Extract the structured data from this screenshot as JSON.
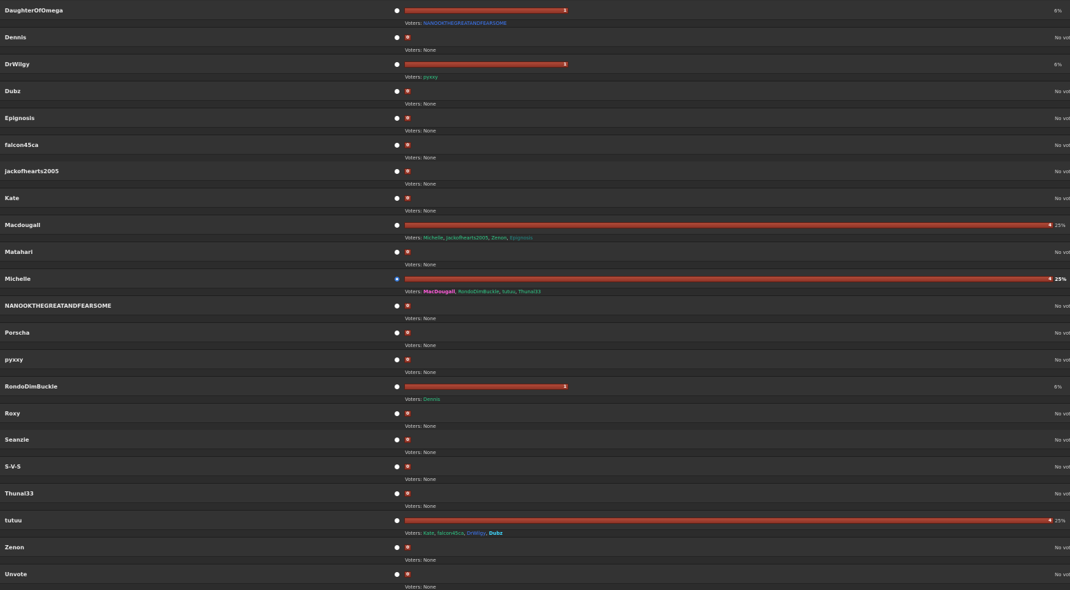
{
  "poll": {
    "voters_label": "Voters:",
    "none_label": "None",
    "no_votes_label": "No votes",
    "options": [
      {
        "name": "DaughterOfOmega",
        "votes": 1,
        "percent": "6%",
        "checked": false,
        "voters": [
          {
            "name": "NANOOKTHEGREATANDFEARSOME",
            "color": "#3d7bff",
            "bold": false
          }
        ]
      },
      {
        "name": "Dennis",
        "votes": 0,
        "percent": "",
        "checked": false,
        "voters": []
      },
      {
        "name": "DrWilgy",
        "votes": 1,
        "percent": "6%",
        "checked": false,
        "voters": [
          {
            "name": "pyxxy",
            "color": "#2fcf8a",
            "bold": false
          }
        ]
      },
      {
        "name": "Dubz",
        "votes": 0,
        "percent": "",
        "checked": false,
        "voters": []
      },
      {
        "name": "Epignosis",
        "votes": 0,
        "percent": "",
        "checked": false,
        "voters": []
      },
      {
        "name": "falcon45ca",
        "votes": 0,
        "percent": "",
        "checked": false,
        "voters": []
      },
      {
        "name": "jackofhearts2005",
        "votes": 0,
        "percent": "",
        "checked": false,
        "voters": []
      },
      {
        "name": "Kate",
        "votes": 0,
        "percent": "",
        "checked": false,
        "voters": []
      },
      {
        "name": "Macdougall",
        "votes": 4,
        "percent": "25%",
        "checked": false,
        "voters": [
          {
            "name": "Michelle",
            "color": "#2fcf8a",
            "bold": false
          },
          {
            "name": "Jackofhearts2005",
            "color": "#2fcf8a",
            "bold": false
          },
          {
            "name": "Zenon",
            "color": "#2fcf8a",
            "bold": false
          },
          {
            "name": "Epignosis",
            "color": "#1f8f8a",
            "bold": false
          }
        ]
      },
      {
        "name": "Matahari",
        "votes": 0,
        "percent": "",
        "checked": false,
        "voters": []
      },
      {
        "name": "Michelle",
        "votes": 4,
        "percent": "25%",
        "checked": true,
        "voters": [
          {
            "name": "MacDougall",
            "color": "#ff5cdb",
            "bold": true
          },
          {
            "name": "RondoDimBuckle",
            "color": "#2fcf8a",
            "bold": false
          },
          {
            "name": "tutuu",
            "color": "#2fcf8a",
            "bold": false
          },
          {
            "name": "Thunal33",
            "color": "#2fcf8a",
            "bold": false
          }
        ]
      },
      {
        "name": "NANOOKTHEGREATANDFEARSOME",
        "votes": 0,
        "percent": "",
        "checked": false,
        "voters": []
      },
      {
        "name": "Porscha",
        "votes": 0,
        "percent": "",
        "checked": false,
        "voters": []
      },
      {
        "name": "pyxxy",
        "votes": 0,
        "percent": "",
        "checked": false,
        "voters": []
      },
      {
        "name": "RondoDimBuckle",
        "votes": 1,
        "percent": "6%",
        "checked": false,
        "voters": [
          {
            "name": "Dennis",
            "color": "#2fcf8a",
            "bold": false
          }
        ]
      },
      {
        "name": "Roxy",
        "votes": 0,
        "percent": "",
        "checked": false,
        "voters": []
      },
      {
        "name": "Seanzie",
        "votes": 0,
        "percent": "",
        "checked": false,
        "voters": []
      },
      {
        "name": "S-V-S",
        "votes": 0,
        "percent": "",
        "checked": false,
        "voters": []
      },
      {
        "name": "Thunal33",
        "votes": 0,
        "percent": "",
        "checked": false,
        "voters": []
      },
      {
        "name": "tutuu",
        "votes": 4,
        "percent": "25%",
        "checked": false,
        "voters": [
          {
            "name": "Kate",
            "color": "#2fcf8a",
            "bold": false
          },
          {
            "name": "falcon45ca",
            "color": "#2fcf8a",
            "bold": false
          },
          {
            "name": "DrWilgy",
            "color": "#3d7bff",
            "bold": false
          },
          {
            "name": "Dubz",
            "color": "#3fd8ff",
            "bold": true
          }
        ]
      },
      {
        "name": "Zenon",
        "votes": 0,
        "percent": "",
        "checked": false,
        "voters": []
      },
      {
        "name": "Unvote",
        "votes": 0,
        "percent": "",
        "checked": false,
        "voters": []
      }
    ]
  }
}
